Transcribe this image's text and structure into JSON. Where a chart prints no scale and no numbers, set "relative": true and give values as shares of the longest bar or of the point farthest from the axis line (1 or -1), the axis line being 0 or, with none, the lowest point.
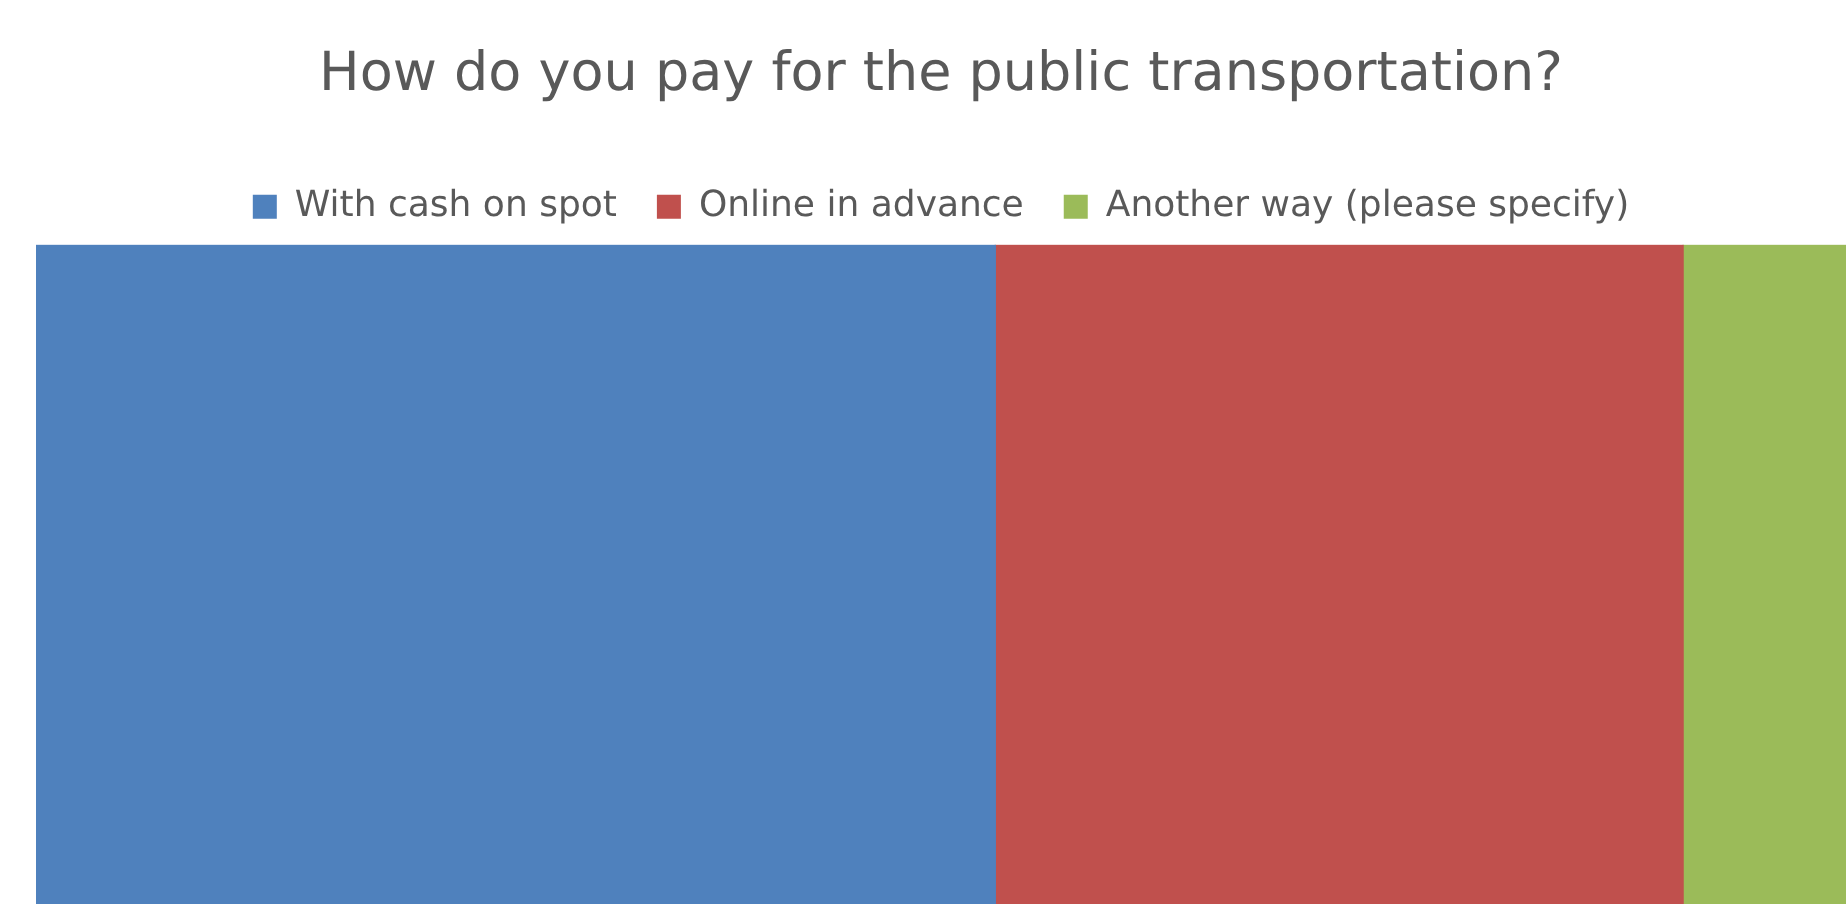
{
  "chart_data": {
    "type": "bar",
    "title": "How do you pay for the public transportation?",
    "orientation": "horizontal",
    "stacked": true,
    "relative": true,
    "legend": "top",
    "categories": [
      null
    ],
    "series": [
      {
        "name": "With cash on spot",
        "color": "#4f81bd",
        "values": [
          0.53
        ]
      },
      {
        "name": "Online in advance",
        "color": "#c0504d",
        "values": [
          0.38
        ]
      },
      {
        "name": "Another way (please specify)",
        "color": "#9bbb59",
        "values": [
          0.09
        ]
      }
    ]
  }
}
